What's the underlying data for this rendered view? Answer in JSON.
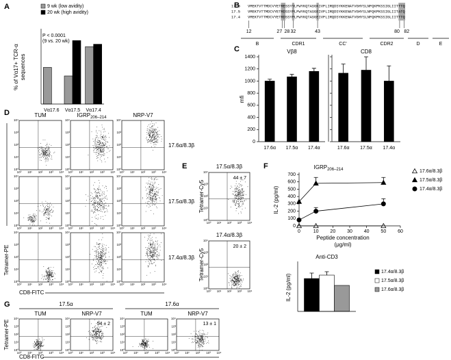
{
  "panel_labels": [
    "A",
    "B",
    "C",
    "D",
    "E",
    "F",
    "G"
  ],
  "chart_data": [
    {
      "type": "bar",
      "ylabel": [
        "% of Vα17+ TCR-α",
        "sequences"
      ],
      "categories": [
        "Vα17.6",
        "Vα17.5",
        "Vα17.4"
      ],
      "series": [
        {
          "name": "9 wk (low avidity)",
          "color": "#999999",
          "values": [
            30,
            23,
            47
          ]
        },
        {
          "name": "20 wk (high avidity)",
          "color": "#000000",
          "values": [
            null,
            52,
            49
          ]
        }
      ],
      "ylim": [
        0,
        60
      ],
      "annotation": [
        "P < 0.0001",
        "(9 vs. 20 wk)"
      ]
    },
    {
      "type": "bar",
      "title": "Vβ8",
      "ylabel": [
        "mfi"
      ],
      "categories": [
        "17.6α",
        "17.5α",
        "17.4α"
      ],
      "values": [
        1000,
        1070,
        1160
      ],
      "errors": [
        30,
        40,
        50
      ],
      "color": "#000000",
      "ylim": [
        0,
        1400
      ],
      "yticks": [
        0,
        200,
        400,
        600,
        800,
        1000,
        1200,
        1400
      ]
    },
    {
      "type": "bar",
      "title": "CD8",
      "categories": [
        "17.6α",
        "17.5α",
        "17.4α"
      ],
      "values": [
        1130,
        1180,
        1000
      ],
      "errors": [
        150,
        220,
        250
      ],
      "color": "#000000",
      "ylim": [
        0,
        1400
      ],
      "yticks": [
        0,
        200,
        400,
        600,
        800,
        1000,
        1200,
        1400
      ],
      "ytick_labels": false
    },
    {
      "type": "line",
      "title": "IGRP",
      "title_sub": "206–214",
      "xlabel": [
        "Peptide concentration",
        "(μg/ml)"
      ],
      "ylabel": [
        "IL-2 (pg/ml)"
      ],
      "x": [
        0,
        10,
        50
      ],
      "series": [
        {
          "name": "17.6α/8.3β",
          "marker": "open-triangle",
          "color": "#000000",
          "values": [
            0,
            0,
            0
          ],
          "errors": [
            null,
            null,
            null
          ]
        },
        {
          "name": "17.5α/8.3β",
          "marker": "triangle",
          "color": "#000000",
          "values": [
            330,
            580,
            590
          ],
          "errors": [
            null,
            80,
            70
          ]
        },
        {
          "name": "17.4α/8.3β",
          "marker": "circle",
          "color": "#000000",
          "values": [
            80,
            200,
            300
          ],
          "errors": [
            null,
            50,
            70
          ]
        }
      ],
      "xlim": [
        0,
        60
      ],
      "xticks": [
        0,
        10,
        20,
        30,
        40,
        50,
        60
      ],
      "ylim": [
        0,
        700
      ],
      "yticks": [
        0,
        100,
        200,
        300,
        400,
        500,
        600,
        700
      ]
    },
    {
      "type": "bar",
      "title": "Anti-CD3",
      "ylabel": [
        "IL-2 (pg/ml)"
      ],
      "categories": [
        null
      ],
      "series": [
        {
          "name": "17.4α/8.3β",
          "color": "#000000",
          "values": [
            480
          ],
          "errors": [
            80
          ]
        },
        {
          "name": "17.5α/8.3β",
          "color": "#ffffff",
          "values": [
            530
          ],
          "errors": [
            50
          ]
        },
        {
          "name": "17.6α/8.3β",
          "color": "#999999",
          "values": [
            380
          ],
          "errors": [
            null
          ]
        }
      ],
      "ylim": [
        0,
        700
      ]
    }
  ],
  "alignment": {
    "rows": [
      {
        "name": "17.6",
        "seq": "VMEKTVTTMDCVYETRESSYYLFWYKQTASGKIVFLIRQDSYKKENATVGHYSLNFQKPKSSIGLIITTTQ"
      },
      {
        "name": "17.5",
        "seq": "VMEKTVTTMDCVYETRDSSYFLFWYKQTASGEIVFLIRQDSYKKENATVGHYSLNFQKPKSSIGLIITATQ"
      },
      {
        "name": "17.4",
        "seq": "VMEKTVTTMDCVYETRDSSYFLFWYKQTASGEIVFLIRQDSYKKENATVGHYSLNFQKPKSSIGLIITTTQ"
      }
    ],
    "positions": [
      12,
      27,
      28,
      32,
      43,
      80,
      82
    ],
    "regions": [
      "B",
      "CDR1",
      "CC'",
      "CDR2",
      "D",
      "E"
    ]
  },
  "flow_ticks": [
    "10⁰",
    "10¹",
    "10²",
    "10³",
    "10⁴"
  ],
  "D": {
    "columns": [
      {
        "text": "TUM"
      },
      {
        "text": "IGRP",
        "sub": "206–214"
      },
      {
        "text": "NRP-V7"
      }
    ],
    "rows": [
      "17.6α/8.3β",
      "17.5α/8.3β",
      "17.4α/8.3β"
    ],
    "ylabel": "Tetramer-PE",
    "xlabel": "CD8-FITC"
  },
  "E": {
    "plots": [
      {
        "title": "17.5α/8.3β",
        "stat": "44 ± 7"
      },
      {
        "title": "17.4α/8.3β",
        "stat": "20 ± 2"
      }
    ],
    "ylabel": "Tetramer-Cy5"
  },
  "G": {
    "groups": [
      {
        "name": "17.5α",
        "columns": [
          {
            "text": "TUM"
          },
          {
            "text": "NRP-V7",
            "stat": "54 ± 2"
          }
        ]
      },
      {
        "name": "17.6α",
        "columns": [
          {
            "text": "TUM"
          },
          {
            "text": "NRP-V7",
            "stat": "13 ± 1"
          }
        ]
      }
    ],
    "ylabel": "Tetramer-PE",
    "xlabel": "CD8-FITC"
  }
}
